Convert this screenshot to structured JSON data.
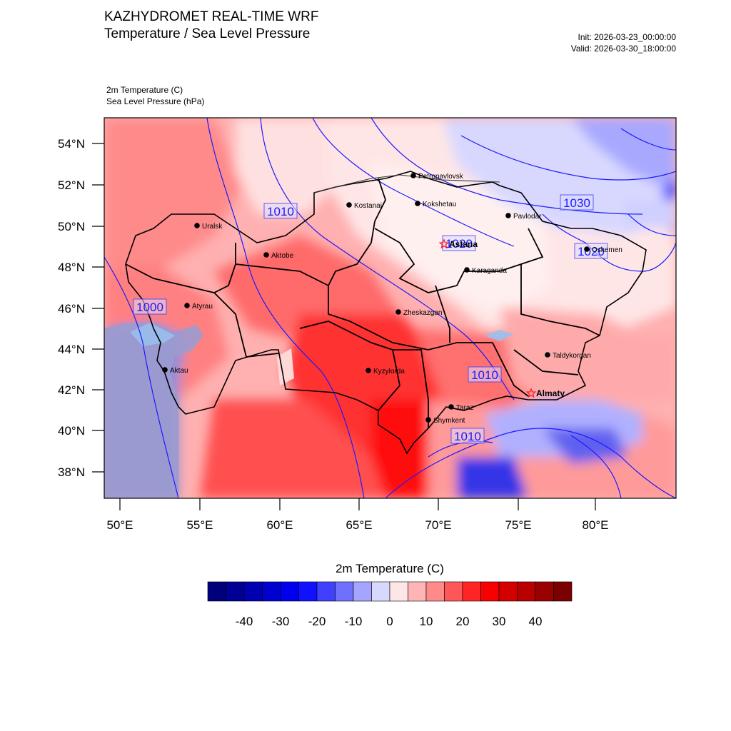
{
  "header": {
    "title": "KAZHYDROMET REAL-TIME WRF",
    "subtitle": "Temperature / Sea Level Pressure",
    "init": "Init: 2026-03-23_00:00:00",
    "valid": "Valid: 2026-03-30_18:00:00",
    "variable_1": "2m Temperature   (C)",
    "variable_2": "Sea Level Pressure   (hPa)"
  },
  "axes": {
    "lat_labels": [
      "54°N",
      "52°N",
      "50°N",
      "48°N",
      "46°N",
      "44°N",
      "42°N",
      "40°N",
      "38°N"
    ],
    "lon_labels": [
      "50°E",
      "55°E",
      "60°E",
      "65°E",
      "70°E",
      "75°E",
      "80°E"
    ]
  },
  "cities": [
    {
      "name": "Petropavlovsk",
      "capital": false
    },
    {
      "name": "Kostanai",
      "capital": false
    },
    {
      "name": "Kokshetau",
      "capital": false
    },
    {
      "name": "Pavlodar",
      "capital": false
    },
    {
      "name": "Uralsk",
      "capital": false
    },
    {
      "name": "Aktobe",
      "capital": false
    },
    {
      "name": "Astana",
      "capital": true
    },
    {
      "name": "Oskemen",
      "capital": false
    },
    {
      "name": "Karaganda",
      "capital": false
    },
    {
      "name": "Atyrau",
      "capital": false
    },
    {
      "name": "Zheskazgan",
      "capital": false
    },
    {
      "name": "Taldykorgan",
      "capital": false
    },
    {
      "name": "Aktau",
      "capital": false
    },
    {
      "name": "Kyzylorda",
      "capital": false
    },
    {
      "name": "Almaty",
      "capital": true
    },
    {
      "name": "Taraz",
      "capital": false
    },
    {
      "name": "Shymkent",
      "capital": false
    }
  ],
  "isobar_labels": [
    "1010",
    "1030",
    "1020",
    "1020",
    "1000",
    "1010",
    "1010"
  ],
  "colorbar": {
    "title": "2m Temperature  (C)",
    "labels": [
      "-40",
      "-30",
      "-20",
      "-10",
      "0",
      "10",
      "20",
      "30",
      "40"
    ],
    "colors": [
      "#00007a",
      "#000095",
      "#0000b0",
      "#0000d0",
      "#0000ee",
      "#1111ff",
      "#4040ff",
      "#7070ff",
      "#a5a5ff",
      "#d8d8ff",
      "#ffe6e6",
      "#ffb5b5",
      "#ff8a8a",
      "#ff5757",
      "#ff2525",
      "#f70000",
      "#d40000",
      "#b80000",
      "#9b0000",
      "#7b0000"
    ]
  }
}
